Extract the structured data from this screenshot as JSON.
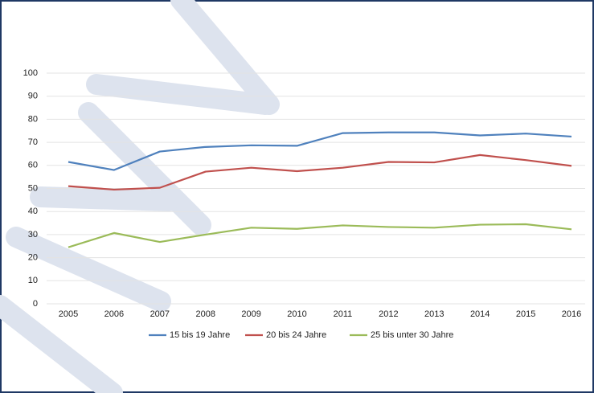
{
  "chart_data": {
    "type": "line",
    "categories": [
      "2005",
      "2006",
      "2007",
      "2008",
      "2009",
      "2010",
      "2011",
      "2012",
      "2013",
      "2014",
      "2015",
      "2016"
    ],
    "series": [
      {
        "name": "15 bis 19 Jahre",
        "color": "#4f81bd",
        "values": [
          61.5,
          58,
          66,
          68,
          68.7,
          68.5,
          74,
          74.3,
          74.3,
          73,
          73.8,
          72.5
        ]
      },
      {
        "name": "20 bis 24 Jahre",
        "color": "#c0504d",
        "values": [
          51,
          49.5,
          50.3,
          57.3,
          59,
          57.5,
          59,
          61.5,
          61.3,
          64.5,
          62.3,
          59.8
        ]
      },
      {
        "name": "25 bis unter 30 Jahre",
        "color": "#9bbb59",
        "values": [
          24.5,
          30.7,
          26.8,
          30,
          33,
          32.5,
          34,
          33.3,
          33,
          34.3,
          34.5,
          32.3
        ]
      }
    ],
    "ylim": [
      0,
      100
    ],
    "yticks": [
      0,
      10,
      20,
      30,
      40,
      50,
      60,
      70,
      80,
      90,
      100
    ],
    "grid": true,
    "legend": "bottom"
  }
}
